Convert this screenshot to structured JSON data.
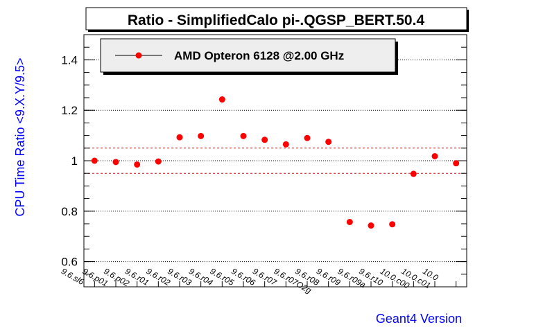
{
  "chart_data": {
    "type": "scatter",
    "title": "Ratio - SimplifiedCalo pi-.QGSP_BERT.50.4",
    "xlabel": "Geant4 Version",
    "ylabel": "CPU Time Ratio <9.X.Y/9.5>",
    "ylim": [
      0.5,
      1.5
    ],
    "yticks": [
      "0.6",
      "0.8",
      "1",
      "1.2",
      "1.4"
    ],
    "grid": true,
    "legend_position": "top-left",
    "reference_lines": [
      0.95,
      1.05
    ],
    "categories": [
      "9.6.sl6",
      "9.6.p01",
      "9.6.p02",
      "9.6.r01",
      "9.6.r02",
      "9.6.r03",
      "9.6.r04",
      "9.6.r05",
      "9.6.r06",
      "9.6.r07",
      "9.6.r07O2g",
      "9.6.r08",
      "9.6.r09",
      "9.6.r09a",
      "9.6.r10",
      "10.0.c00",
      "10.0.c01",
      "10.0"
    ],
    "series": [
      {
        "name": "AMD Opteron 6128 @2.00 GHz",
        "color": "#ff0000",
        "values": [
          1.0,
          0.995,
          0.985,
          0.997,
          1.093,
          1.098,
          1.243,
          1.098,
          1.083,
          1.065,
          1.09,
          1.075,
          0.757,
          0.743,
          0.748,
          0.948,
          1.018,
          0.99
        ]
      }
    ]
  },
  "colors": {
    "axis_title": "#0000ff",
    "marker": "#ff0000",
    "reference_line": "#ff0000",
    "legend_background": "#eeeeee"
  }
}
